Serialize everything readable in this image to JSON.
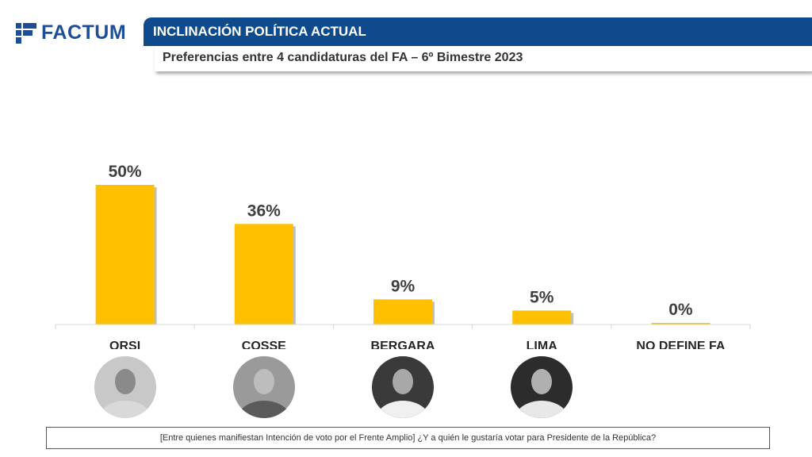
{
  "brand": {
    "name": "FACTUM",
    "color": "#1f4e96"
  },
  "header": {
    "title": "INCLINACIÓN POLÍTICA ACTUAL",
    "subtitle": "Preferencias entre 4 candidaturas del FA – 6º Bimestre 2023"
  },
  "chart_data": {
    "type": "bar",
    "title": "Preferencias entre 4 candidaturas del FA – 6º Bimestre 2023",
    "categories": [
      "ORSI",
      "COSSE",
      "BERGARA",
      "LIMA",
      "NO DEFINE FA"
    ],
    "values": [
      50,
      36,
      9,
      5,
      0
    ],
    "value_labels": [
      "50%",
      "36%",
      "9%",
      "5%",
      "0%"
    ],
    "unit": "%",
    "ylim": [
      0,
      50
    ],
    "bar_color": "#ffc000",
    "grid": false,
    "legend": "none"
  },
  "candidates": [
    {
      "name": "ORSI",
      "photo_icon": "person-photo-icon"
    },
    {
      "name": "COSSE",
      "photo_icon": "person-photo-icon"
    },
    {
      "name": "BERGARA",
      "photo_icon": "person-photo-icon"
    },
    {
      "name": "LIMA",
      "photo_icon": "person-photo-icon"
    }
  ],
  "footnote": "[Entre quienes manifiestan Intención de voto por el Frente Amplio] ¿Y a quién le gustaría votar para Presidente de la República?"
}
